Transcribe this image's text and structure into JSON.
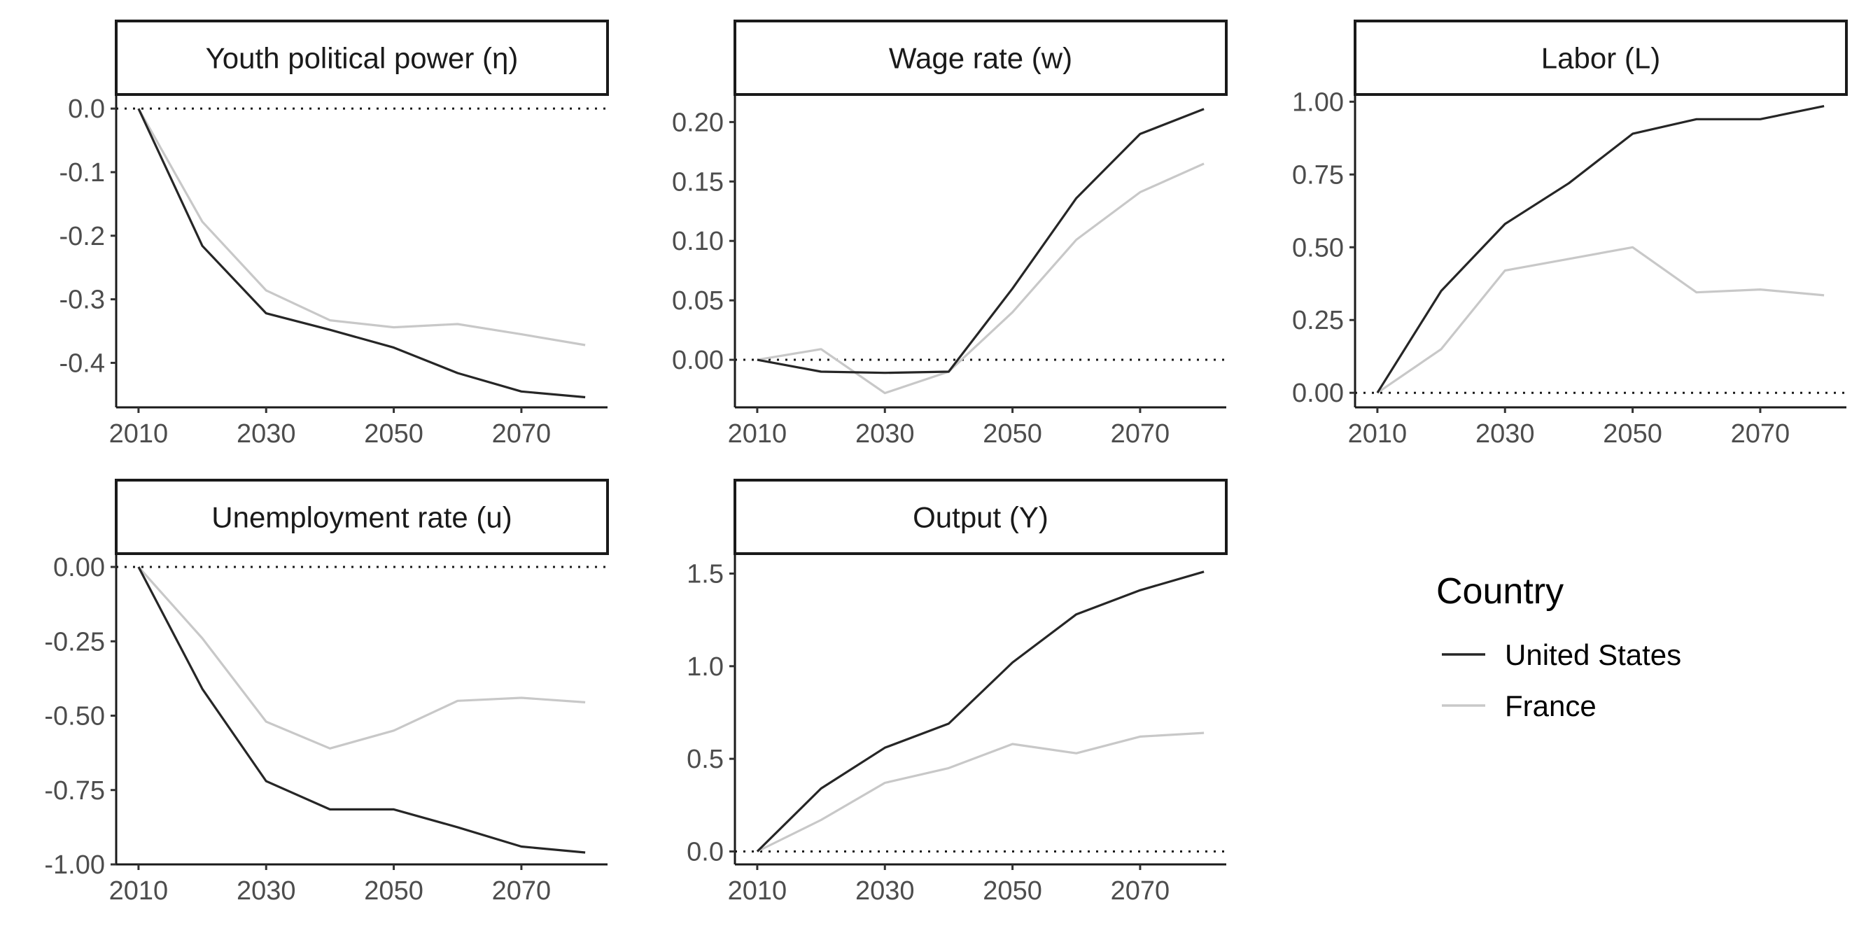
{
  "chart_data": {
    "type": "line",
    "x": [
      2010,
      2020,
      2030,
      2040,
      2050,
      2060,
      2070,
      2080
    ],
    "x_ticks": [
      2010,
      2030,
      2050,
      2070
    ],
    "colors": {
      "United States": "#262626",
      "France": "#c8c8c8"
    },
    "legend": {
      "title": "Country",
      "placement": "right",
      "entries": [
        "United States",
        "France"
      ]
    },
    "reference_line": {
      "y": 0,
      "style": "dotted"
    },
    "panels": [
      {
        "title": "Youth political power (η)",
        "ylim": [
          -0.47,
          0.02
        ],
        "y_ticks": [
          0.0,
          -0.1,
          -0.2,
          -0.3,
          -0.4
        ],
        "y_tick_labels": [
          "0.0",
          "-0.1",
          "-0.2",
          "-0.3",
          "-0.4"
        ],
        "series": [
          {
            "name": "United States",
            "values": [
              0.0,
              -0.216,
              -0.322,
              -0.348,
              -0.376,
              -0.416,
              -0.445,
              -0.454
            ]
          },
          {
            "name": "France",
            "values": [
              0.0,
              -0.178,
              -0.286,
              -0.333,
              -0.344,
              -0.339,
              -0.355,
              -0.372
            ]
          }
        ]
      },
      {
        "title": "Wage rate (w)",
        "ylim": [
          -0.04,
          0.222
        ],
        "y_ticks": [
          0.0,
          0.05,
          0.1,
          0.15,
          0.2
        ],
        "y_tick_labels": [
          "0.00",
          "0.05",
          "0.10",
          "0.15",
          "0.20"
        ],
        "series": [
          {
            "name": "United States",
            "values": [
              0.0,
              -0.01,
              -0.011,
              -0.01,
              0.06,
              0.136,
              0.19,
              0.211
            ]
          },
          {
            "name": "France",
            "values": [
              0.0,
              0.009,
              -0.028,
              -0.01,
              0.04,
              0.101,
              0.141,
              0.165
            ]
          }
        ]
      },
      {
        "title": "Labor (L)",
        "ylim": [
          -0.05,
          1.02
        ],
        "y_ticks": [
          0.0,
          0.25,
          0.5,
          0.75,
          1.0
        ],
        "y_tick_labels": [
          "0.00",
          "0.25",
          "0.50",
          "0.75",
          "1.00"
        ],
        "series": [
          {
            "name": "United States",
            "values": [
              0.0,
              0.35,
              0.58,
              0.72,
              0.89,
              0.94,
              0.94,
              0.985
            ]
          },
          {
            "name": "France",
            "values": [
              0.0,
              0.15,
              0.42,
              0.46,
              0.5,
              0.345,
              0.355,
              0.335
            ]
          }
        ]
      },
      {
        "title": "Unemployment rate (u)",
        "ylim": [
          -1.0,
          0.04
        ],
        "y_ticks": [
          0.0,
          -0.25,
          -0.5,
          -0.75,
          -1.0
        ],
        "y_tick_labels": [
          "0.00",
          "-0.25",
          "-0.50",
          "-0.75",
          "-1.00"
        ],
        "series": [
          {
            "name": "United States",
            "values": [
              0.0,
              -0.41,
              -0.72,
              -0.815,
              -0.815,
              -0.875,
              -0.94,
              -0.96
            ]
          },
          {
            "name": "France",
            "values": [
              0.0,
              -0.24,
              -0.52,
              -0.61,
              -0.55,
              -0.45,
              -0.44,
              -0.455
            ]
          }
        ]
      },
      {
        "title": "Output (Y)",
        "ylim": [
          -0.07,
          1.6
        ],
        "y_ticks": [
          0.0,
          0.5,
          1.0,
          1.5
        ],
        "y_tick_labels": [
          "0.0",
          "0.5",
          "1.0",
          "1.5"
        ],
        "series": [
          {
            "name": "United States",
            "values": [
              0.0,
              0.34,
              0.56,
              0.69,
              1.02,
              1.28,
              1.41,
              1.51
            ]
          },
          {
            "name": "France",
            "values": [
              0.0,
              0.17,
              0.37,
              0.45,
              0.58,
              0.53,
              0.62,
              0.64
            ]
          }
        ]
      }
    ]
  }
}
